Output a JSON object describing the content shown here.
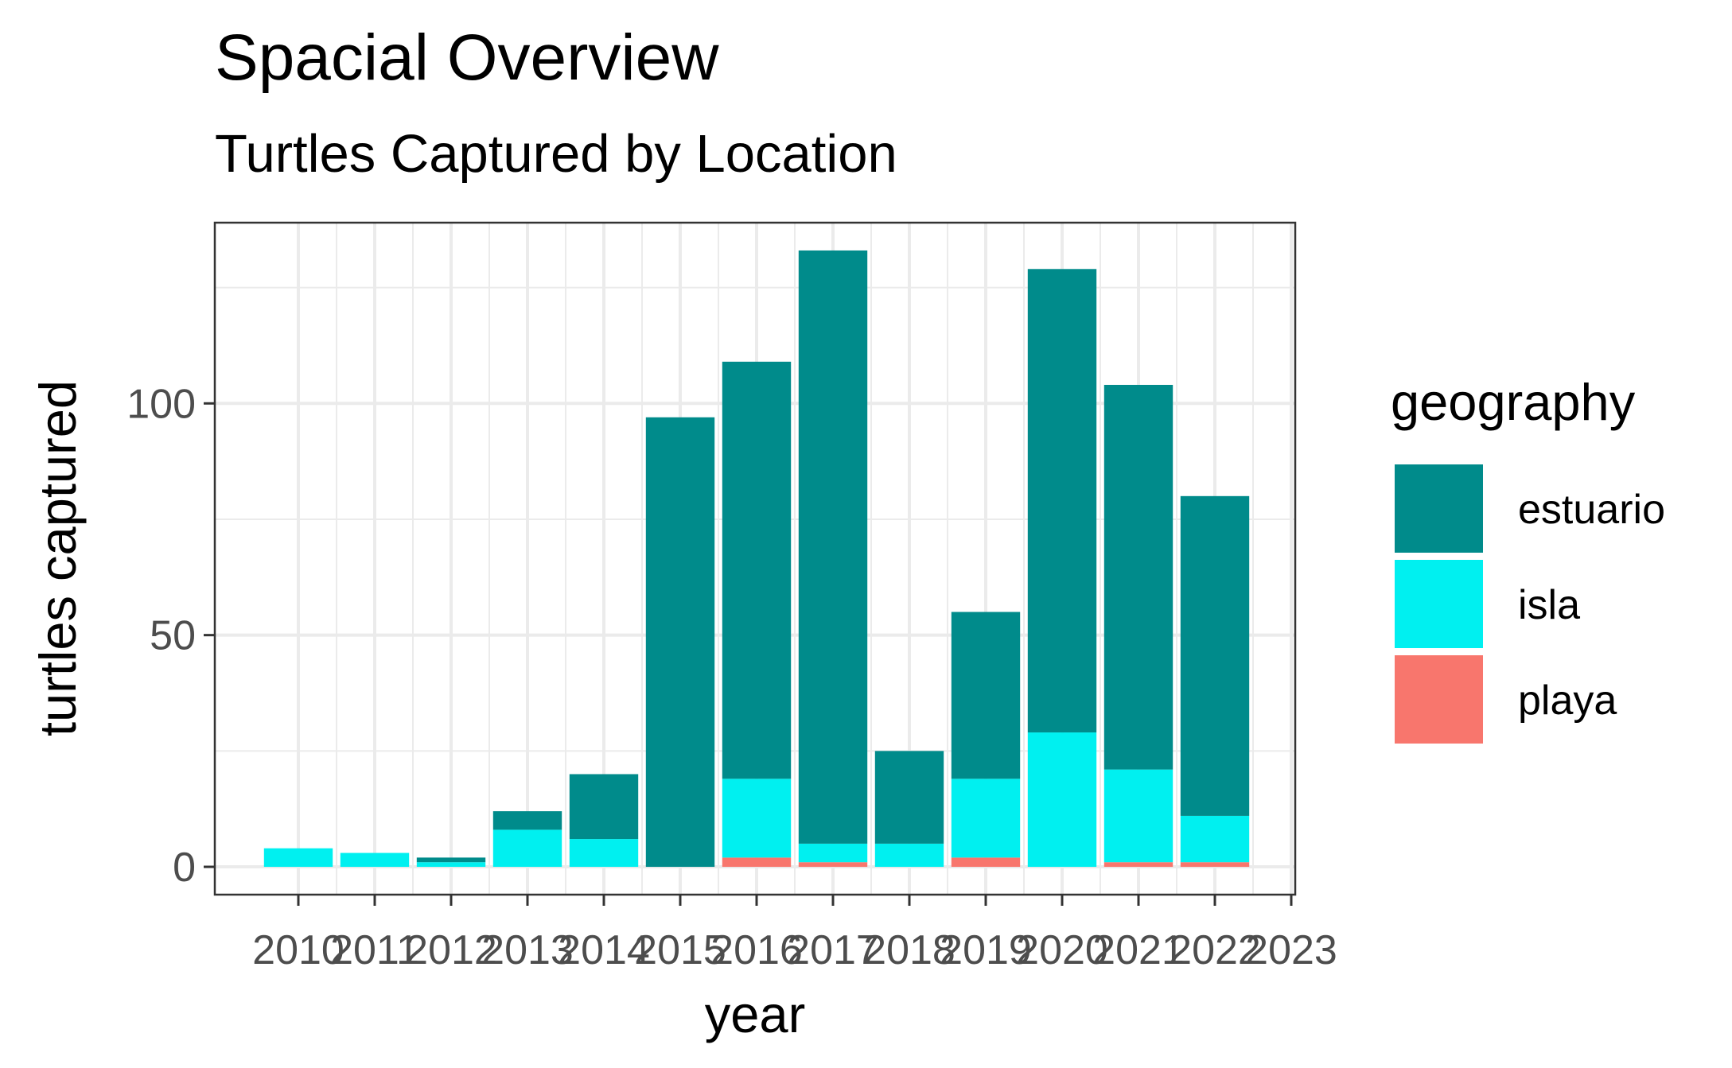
{
  "chart_data": {
    "type": "bar",
    "stacked": true,
    "title": "Spacial Overview",
    "subtitle": "Turtles Captured by Location",
    "xlabel": "year",
    "ylabel": "turtles captured",
    "x_ticks": [
      "2010",
      "2011",
      "2012",
      "2013",
      "2014",
      "2015",
      "2016",
      "2017",
      "2018",
      "2019",
      "2020",
      "2021",
      "2022",
      "2023"
    ],
    "y_ticks": [
      0,
      50,
      100
    ],
    "ylim": [
      -6,
      139
    ],
    "grid": true,
    "legend": {
      "title": "geography",
      "position": "right"
    },
    "categories": [
      "2010",
      "2011",
      "2012",
      "2013",
      "2014",
      "2015",
      "2016",
      "2017",
      "2018",
      "2019",
      "2020",
      "2021",
      "2022"
    ],
    "series": [
      {
        "name": "playa",
        "color": "#F8766D",
        "values": [
          0,
          0,
          0,
          0,
          0,
          0,
          2,
          1,
          0,
          2,
          0,
          1,
          1
        ]
      },
      {
        "name": "isla",
        "color": "#00F0F0",
        "values": [
          4,
          3,
          1,
          8,
          6,
          0,
          17,
          4,
          5,
          17,
          29,
          20,
          10
        ]
      },
      {
        "name": "estuario",
        "color": "#008B8B",
        "values": [
          0,
          0,
          1,
          4,
          14,
          97,
          90,
          128,
          20,
          36,
          100,
          83,
          69
        ]
      }
    ],
    "legend_order": [
      "estuario",
      "isla",
      "playa"
    ]
  }
}
